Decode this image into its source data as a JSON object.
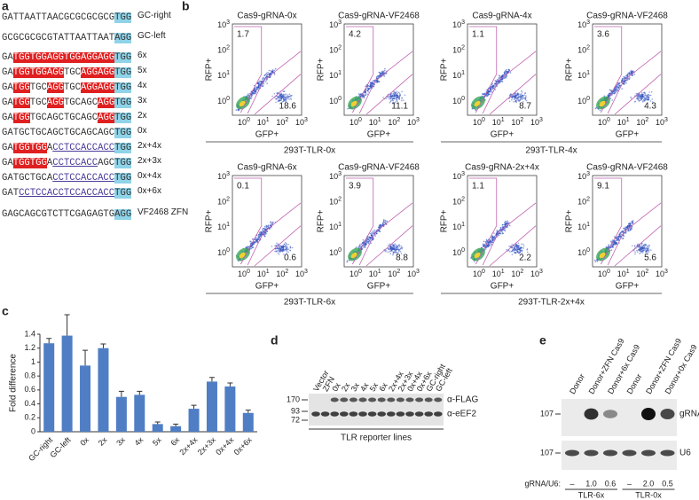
{
  "panel_letters": [
    "a",
    "b",
    "c",
    "d",
    "e"
  ],
  "sequences": {
    "rows": [
      {
        "segments": [
          {
            "t": "GATTAATTAACGCGCGCGCG",
            "s": "plain"
          },
          {
            "t": "TGG",
            "s": "blue"
          }
        ],
        "label": "GC-right"
      },
      {
        "segments": [
          {
            "t": "GCGCGCGCGTATTAATTAAT",
            "s": "plain"
          },
          {
            "t": "AGG",
            "s": "blue"
          }
        ],
        "label": "GC-left"
      },
      {
        "segments": [
          {
            "t": "GA",
            "s": "plain"
          },
          {
            "t": "TGGTGGAGGTGGAGGAGG",
            "s": "red"
          },
          {
            "t": "TGG",
            "s": "blue"
          }
        ],
        "label": "6x"
      },
      {
        "segments": [
          {
            "t": "GA",
            "s": "plain"
          },
          {
            "t": "TGGTGGAGG",
            "s": "red"
          },
          {
            "t": "TGC",
            "s": "plain"
          },
          {
            "t": "AGGAGG",
            "s": "red"
          },
          {
            "t": "TGG",
            "s": "blue"
          }
        ],
        "label": "5x"
      },
      {
        "segments": [
          {
            "t": "GA",
            "s": "plain"
          },
          {
            "t": "TGG",
            "s": "red"
          },
          {
            "t": "TGC",
            "s": "plain"
          },
          {
            "t": "AGG",
            "s": "red"
          },
          {
            "t": "TGC",
            "s": "plain"
          },
          {
            "t": "AGGAGG",
            "s": "red"
          },
          {
            "t": "TGG",
            "s": "blue"
          }
        ],
        "label": "4x"
      },
      {
        "segments": [
          {
            "t": "GA",
            "s": "plain"
          },
          {
            "t": "TGG",
            "s": "red"
          },
          {
            "t": "TGC",
            "s": "plain"
          },
          {
            "t": "AGG",
            "s": "red"
          },
          {
            "t": "TGCAGC",
            "s": "plain"
          },
          {
            "t": "AGG",
            "s": "red"
          },
          {
            "t": "TGG",
            "s": "blue"
          }
        ],
        "label": "3x"
      },
      {
        "segments": [
          {
            "t": "GA",
            "s": "plain"
          },
          {
            "t": "TGG",
            "s": "red"
          },
          {
            "t": "TGCAGCTGCAGC",
            "s": "plain"
          },
          {
            "t": "AGG",
            "s": "red"
          },
          {
            "t": "TGG",
            "s": "blue"
          }
        ],
        "label": "2x"
      },
      {
        "segments": [
          {
            "t": "GATGCTGCAGCTGCAGCAGC",
            "s": "plain"
          },
          {
            "t": "TGG",
            "s": "blue"
          }
        ],
        "label": "0x"
      },
      {
        "segments": [
          {
            "t": "GA",
            "s": "plain"
          },
          {
            "t": "TGGTGG",
            "s": "red"
          },
          {
            "t": "A",
            "s": "plain"
          },
          {
            "t": "CCTCCACCACC",
            "s": "line"
          },
          {
            "t": "TGG",
            "s": "blue"
          }
        ],
        "label": "2x+4x"
      },
      {
        "segments": [
          {
            "t": "GA",
            "s": "plain"
          },
          {
            "t": "TGGTGG",
            "s": "red"
          },
          {
            "t": "A",
            "s": "plain"
          },
          {
            "t": "CCTCCACC",
            "s": "line"
          },
          {
            "t": "AGC",
            "s": "plain"
          },
          {
            "t": "TGG",
            "s": "blue"
          }
        ],
        "label": "2x+3x"
      },
      {
        "segments": [
          {
            "t": "GATGCTGCA",
            "s": "plain"
          },
          {
            "t": "CCTCCACCACC",
            "s": "line"
          },
          {
            "t": "TGG",
            "s": "blue"
          }
        ],
        "label": "0x+4x"
      },
      {
        "segments": [
          {
            "t": "GAT",
            "s": "plain"
          },
          {
            "t": "CCTCCACCTCCACCACC",
            "s": "line"
          },
          {
            "t": "TGG",
            "s": "blue"
          }
        ],
        "label": "0x+6x"
      },
      {
        "segments": [
          {
            "t": "GAGCAGCGTCTTCGAGAGTG",
            "s": "plain"
          },
          {
            "t": "AGG",
            "s": "blue"
          }
        ],
        "label": "VF2468 ZFN"
      }
    ]
  },
  "flow": {
    "tick_base": "10",
    "tick_exps": [
      "0",
      "1",
      "2",
      "3"
    ],
    "x_label": "GFP+",
    "y_label": "RFP+",
    "plots": [
      {
        "title": "Cas9-gRNA-0x",
        "upper_left": "1.7",
        "lower_right": "18.6"
      },
      {
        "title": "Cas9-gRNA-VF2468",
        "upper_left": "4.2",
        "lower_right": "11.1"
      },
      {
        "title": "Cas9-gRNA-4x",
        "upper_left": "1.1",
        "lower_right": "8.7"
      },
      {
        "title": "Cas9-gRNA-VF2468",
        "upper_left": "3.6",
        "lower_right": "4.3"
      },
      {
        "title": "Cas9-gRNA-6x",
        "upper_left": "0.1",
        "lower_right": "0.6"
      },
      {
        "title": "Cas9-gRNA-VF2468",
        "upper_left": "3.9",
        "lower_right": "8.8"
      },
      {
        "title": "Cas9-gRNA-2x+4x",
        "upper_left": "1.1",
        "lower_right": "2.2"
      },
      {
        "title": "Cas9-gRNA-VF2468",
        "upper_left": "9.1",
        "lower_right": "5.6"
      }
    ],
    "groups": [
      "293T-TLR-0x",
      "293T-TLR-4x",
      "293T-TLR-6x",
      "293T-TLR-2x+4x"
    ]
  },
  "chart_data": {
    "type": "bar",
    "y_label": "Fold difference",
    "categories": [
      "GC-right",
      "GC-left",
      "0x",
      "2x",
      "3x",
      "4x",
      "5x",
      "6x",
      "2x+4x",
      "2x+3x",
      "0x+4x",
      "0x+6x"
    ],
    "values": [
      1.27,
      1.38,
      0.95,
      1.2,
      0.5,
      0.53,
      0.11,
      0.08,
      0.33,
      0.72,
      0.65,
      0.27
    ],
    "errors": [
      0.07,
      0.3,
      0.22,
      0.06,
      0.08,
      0.05,
      0.03,
      0.03,
      0.05,
      0.06,
      0.05,
      0.04
    ],
    "color": "#4f7ec4",
    "ylim": [
      0,
      1.4
    ],
    "yticks": [
      0,
      0.2,
      0.4,
      0.6,
      0.8,
      1,
      1.2,
      1.4
    ]
  },
  "western_d": {
    "lanes": [
      "Vector",
      "ZFN",
      "0x",
      "2x",
      "3x",
      "4x",
      "5x",
      "6x",
      "2x+4x",
      "2x+3x",
      "0x+4x",
      "0x+6x",
      "GC-right",
      "GC-left"
    ],
    "markers": [
      170,
      93,
      72
    ],
    "bands": [
      "α-FLAG",
      "α-eEF2"
    ],
    "caption": "TLR reporter lines"
  },
  "northern_e": {
    "lanes": [
      "Donor",
      "Donor+ZFN Cas9",
      "Donor+6x Cas9",
      "Donor",
      "Donor+ZFN Cas9",
      "Donor+0x Cas9"
    ],
    "markers": [
      107,
      107
    ],
    "bands": [
      "gRNA",
      "U6"
    ],
    "ratio_label": "gRNA/U6:",
    "ratios": [
      "–",
      "1.0",
      "0.6",
      "–",
      "2.0",
      "0.5"
    ],
    "groups": [
      "TLR-6x",
      "TLR-0x"
    ]
  }
}
